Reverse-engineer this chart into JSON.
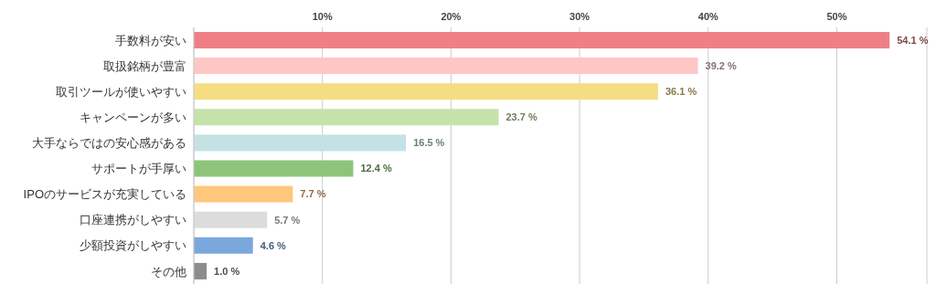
{
  "chart_data": {
    "type": "bar",
    "orientation": "horizontal",
    "categories": [
      "手数料が安い",
      "取扱銘柄が豊富",
      "取引ツールが使いやすい",
      "キャンペーンが多い",
      "大手ならではの安心感がある",
      "サポートが手厚い",
      "IPOのサービスが充実している",
      "口座連携がしやすい",
      "少額投資がしやすい",
      "その他"
    ],
    "values": [
      54.1,
      39.2,
      36.1,
      23.7,
      16.5,
      12.4,
      7.7,
      5.7,
      4.6,
      1.0
    ],
    "colors": [
      "#ee8085",
      "#ffc6c6",
      "#f5dd82",
      "#c5e3a9",
      "#c4e2e3",
      "#8cc57a",
      "#ffc77b",
      "#dcdcdc",
      "#7ba8dc",
      "#8c8c8c"
    ],
    "value_labels": [
      "54.1 %",
      "39.2 %",
      "36.1 %",
      "23.7 %",
      "16.5 %",
      "12.4 %",
      "7.7 %",
      "5.7 %",
      "4.6 %",
      "1.0 %"
    ],
    "xlim": [
      0,
      57
    ],
    "xticks": [
      {
        "value": 0,
        "label": null
      },
      {
        "value": 10,
        "label": "10%"
      },
      {
        "value": 20,
        "label": "20%"
      },
      {
        "value": 30,
        "label": "30%"
      },
      {
        "value": 40,
        "label": "40%"
      },
      {
        "value": 50,
        "label": "50%"
      }
    ],
    "grid": "x"
  }
}
